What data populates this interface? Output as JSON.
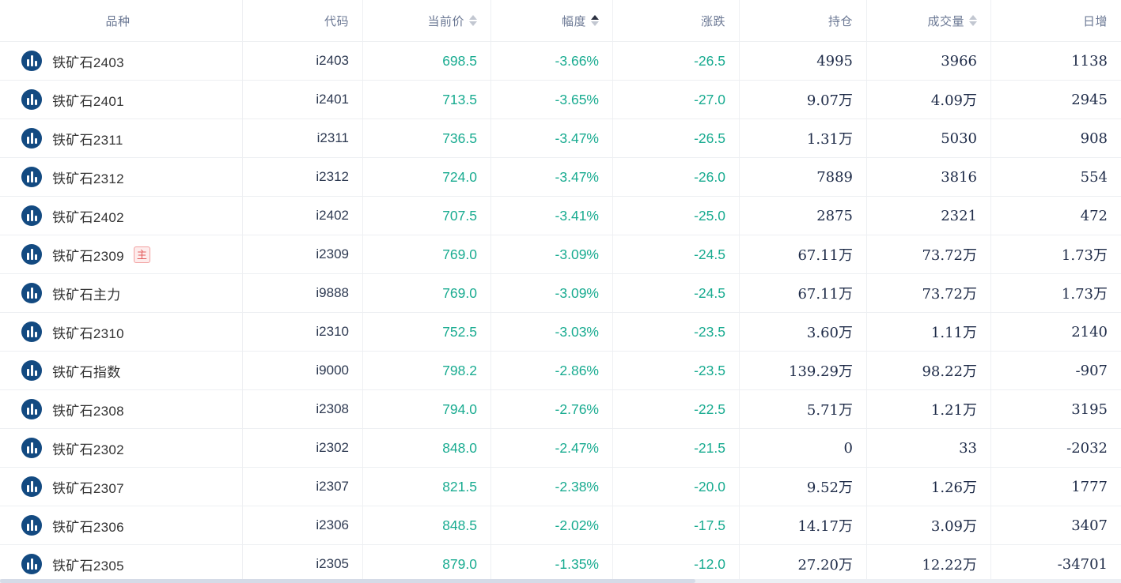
{
  "colors": {
    "down_green": "#18ab90",
    "icon_blue": "#134a81",
    "badge_red": "#e35a5a"
  },
  "table": {
    "columns": [
      {
        "id": "product",
        "label": "品种",
        "sort": null
      },
      {
        "id": "code",
        "label": "代码",
        "sort": null
      },
      {
        "id": "price",
        "label": "当前价",
        "sort": "both"
      },
      {
        "id": "change-pct",
        "label": "幅度",
        "sort": "asc"
      },
      {
        "id": "change",
        "label": "涨跌",
        "sort": null
      },
      {
        "id": "open-interest",
        "label": "持仓",
        "sort": null
      },
      {
        "id": "volume",
        "label": "成交量",
        "sort": "both"
      },
      {
        "id": "daily-increase",
        "label": "日增",
        "sort": null
      }
    ],
    "rows": [
      {
        "name": "铁矿石2403",
        "badge": "",
        "code": "i2403",
        "price": "698.5",
        "change_pct": "-3.66%",
        "change": "-26.5",
        "open_interest": "4995",
        "volume": "3966",
        "daily_increase": "1138"
      },
      {
        "name": "铁矿石2401",
        "badge": "",
        "code": "i2401",
        "price": "713.5",
        "change_pct": "-3.65%",
        "change": "-27.0",
        "open_interest": "9.07万",
        "volume": "4.09万",
        "daily_increase": "2945"
      },
      {
        "name": "铁矿石2311",
        "badge": "",
        "code": "i2311",
        "price": "736.5",
        "change_pct": "-3.47%",
        "change": "-26.5",
        "open_interest": "1.31万",
        "volume": "5030",
        "daily_increase": "908"
      },
      {
        "name": "铁矿石2312",
        "badge": "",
        "code": "i2312",
        "price": "724.0",
        "change_pct": "-3.47%",
        "change": "-26.0",
        "open_interest": "7889",
        "volume": "3816",
        "daily_increase": "554"
      },
      {
        "name": "铁矿石2402",
        "badge": "",
        "code": "i2402",
        "price": "707.5",
        "change_pct": "-3.41%",
        "change": "-25.0",
        "open_interest": "2875",
        "volume": "2321",
        "daily_increase": "472"
      },
      {
        "name": "铁矿石2309",
        "badge": "主",
        "code": "i2309",
        "price": "769.0",
        "change_pct": "-3.09%",
        "change": "-24.5",
        "open_interest": "67.11万",
        "volume": "73.72万",
        "daily_increase": "1.73万"
      },
      {
        "name": "铁矿石主力",
        "badge": "",
        "code": "i9888",
        "price": "769.0",
        "change_pct": "-3.09%",
        "change": "-24.5",
        "open_interest": "67.11万",
        "volume": "73.72万",
        "daily_increase": "1.73万"
      },
      {
        "name": "铁矿石2310",
        "badge": "",
        "code": "i2310",
        "price": "752.5",
        "change_pct": "-3.03%",
        "change": "-23.5",
        "open_interest": "3.60万",
        "volume": "1.11万",
        "daily_increase": "2140"
      },
      {
        "name": "铁矿石指数",
        "badge": "",
        "code": "i9000",
        "price": "798.2",
        "change_pct": "-2.86%",
        "change": "-23.5",
        "open_interest": "139.29万",
        "volume": "98.22万",
        "daily_increase": "-907"
      },
      {
        "name": "铁矿石2308",
        "badge": "",
        "code": "i2308",
        "price": "794.0",
        "change_pct": "-2.76%",
        "change": "-22.5",
        "open_interest": "5.71万",
        "volume": "1.21万",
        "daily_increase": "3195"
      },
      {
        "name": "铁矿石2302",
        "badge": "",
        "code": "i2302",
        "price": "848.0",
        "change_pct": "-2.47%",
        "change": "-21.5",
        "open_interest": "0",
        "volume": "33",
        "daily_increase": "-2032"
      },
      {
        "name": "铁矿石2307",
        "badge": "",
        "code": "i2307",
        "price": "821.5",
        "change_pct": "-2.38%",
        "change": "-20.0",
        "open_interest": "9.52万",
        "volume": "1.26万",
        "daily_increase": "1777"
      },
      {
        "name": "铁矿石2306",
        "badge": "",
        "code": "i2306",
        "price": "848.5",
        "change_pct": "-2.02%",
        "change": "-17.5",
        "open_interest": "14.17万",
        "volume": "3.09万",
        "daily_increase": "3407"
      },
      {
        "name": "铁矿石2305",
        "badge": "",
        "code": "i2305",
        "price": "879.0",
        "change_pct": "-1.35%",
        "change": "-12.0",
        "open_interest": "27.20万",
        "volume": "12.22万",
        "daily_increase": "-34701"
      }
    ]
  }
}
